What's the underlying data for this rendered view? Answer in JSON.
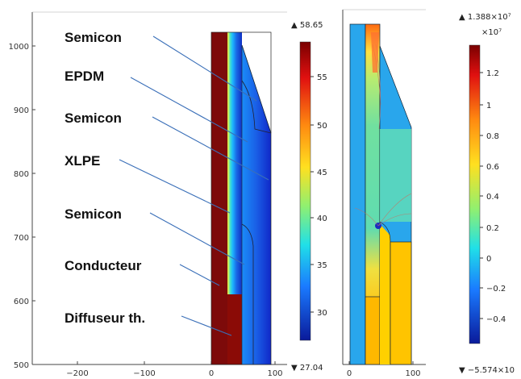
{
  "left_plot": {
    "y_ticks": [
      "1000",
      "900",
      "800",
      "700",
      "600",
      "500"
    ],
    "x_ticks": [
      "−200",
      "−100",
      "0",
      "100"
    ],
    "labels": [
      "Semicon",
      "EPDM",
      "Semicon",
      "XLPE",
      "Semicon",
      "Conducteur",
      "Diffuseur th."
    ]
  },
  "temp_colorbar": {
    "max_label": "▲ 58.65",
    "min_label": "▼ 27.04",
    "ticks": [
      "55",
      "50",
      "45",
      "40",
      "35",
      "30"
    ]
  },
  "right_plot": {
    "x_ticks": [
      "0",
      "100"
    ]
  },
  "field_colorbar": {
    "max_label": "▲ 1.388×10⁷",
    "exponent": "×10⁷",
    "min_label": "▼ −5.574×10",
    "ticks": [
      "1.2",
      "1",
      "0.8",
      "0.6",
      "0.4",
      "0.2",
      "0",
      "−0.2",
      "−0.4"
    ]
  },
  "colors": {
    "line_blue": "#3a6fb8",
    "dark_red": "#7d0a0a",
    "field_blue": "#29a6ec"
  }
}
